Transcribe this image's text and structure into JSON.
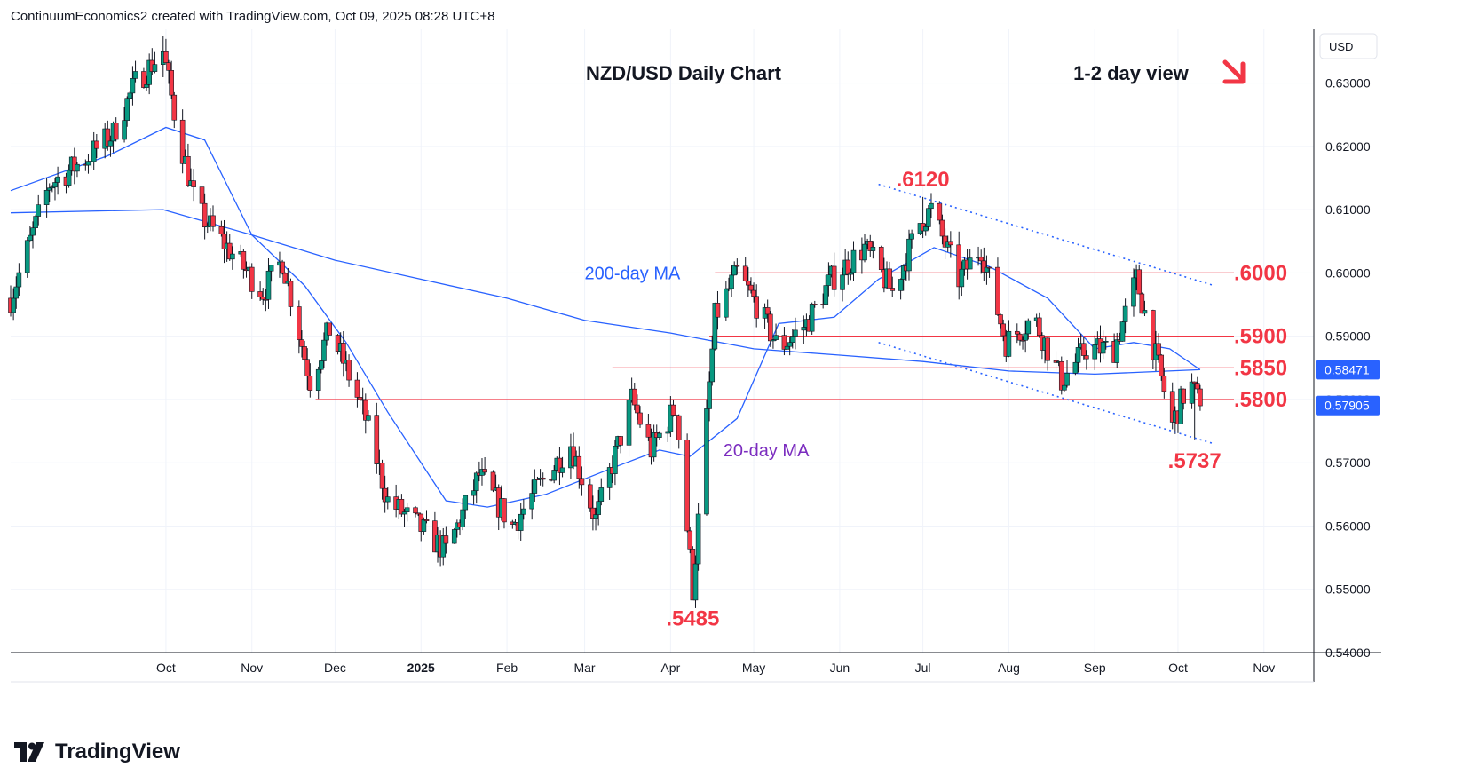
{
  "header": {
    "attribution": "ContinuumEconomics2 created with TradingView.com, Oct 09, 2025 08:28 UTC+8"
  },
  "branding": {
    "name": "TradingView"
  },
  "colors": {
    "bull": "#089981",
    "bear": "#f23645",
    "ma20": "#2962ff",
    "ma200": "#2962ff",
    "level": "#f23645",
    "annotation_red": "#f23645",
    "annotation_purple": "#7b2cbf",
    "channel": "#2962ff",
    "price_badge_ma": "#2962ff",
    "price_badge_last": "#2962ff"
  },
  "chart_data": {
    "type": "candlestick",
    "title": "NZD/USD Daily Chart",
    "subtitle": "1-2 day view",
    "currency_label": "USD",
    "y_range": [
      0.54,
      0.6385
    ],
    "y_ticks": [
      "0.63000",
      "0.62000",
      "0.61000",
      "0.60000",
      "0.59000",
      "0.58000",
      "0.57000",
      "0.56000",
      "0.55000",
      "0.54000"
    ],
    "y_tick_values": [
      0.63,
      0.62,
      0.61,
      0.6,
      0.59,
      0.58,
      0.57,
      0.56,
      0.55,
      0.54
    ],
    "x_labels": [
      {
        "label": "Oct",
        "date": "2024-10-01"
      },
      {
        "label": "Nov",
        "date": "2024-11-01"
      },
      {
        "label": "Dec",
        "date": "2024-12-01"
      },
      {
        "label": "2025",
        "date": "2025-01-01"
      },
      {
        "label": "Feb",
        "date": "2025-02-01"
      },
      {
        "label": "Mar",
        "date": "2025-03-01"
      },
      {
        "label": "Apr",
        "date": "2025-04-01"
      },
      {
        "label": "May",
        "date": "2025-05-01"
      },
      {
        "label": "Jun",
        "date": "2025-06-01"
      },
      {
        "label": "Jul",
        "date": "2025-07-01"
      },
      {
        "label": "Aug",
        "date": "2025-08-01"
      },
      {
        "label": "Sep",
        "date": "2025-09-01"
      },
      {
        "label": "Oct",
        "date": "2025-10-01"
      },
      {
        "label": "Nov",
        "date": "2025-11-01"
      }
    ],
    "x_range": [
      "2024-08-06",
      "2025-11-19"
    ],
    "price_path": [
      {
        "date": "2024-08-06",
        "price": 0.596
      },
      {
        "date": "2024-08-20",
        "price": 0.614
      },
      {
        "date": "2024-09-02",
        "price": 0.618
      },
      {
        "date": "2024-09-12",
        "price": 0.622
      },
      {
        "date": "2024-09-20",
        "price": 0.63
      },
      {
        "date": "2024-09-30",
        "price": 0.635
      },
      {
        "date": "2024-10-05",
        "price": 0.623
      },
      {
        "date": "2024-10-12",
        "price": 0.61
      },
      {
        "date": "2024-10-25",
        "price": 0.603
      },
      {
        "date": "2024-11-05",
        "price": 0.597
      },
      {
        "date": "2024-11-12",
        "price": 0.602
      },
      {
        "date": "2024-11-22",
        "price": 0.583
      },
      {
        "date": "2024-11-29",
        "price": 0.591
      },
      {
        "date": "2024-12-04",
        "price": 0.586
      },
      {
        "date": "2024-12-12",
        "price": 0.577
      },
      {
        "date": "2024-12-20",
        "price": 0.564
      },
      {
        "date": "2024-12-31",
        "price": 0.56
      },
      {
        "date": "2025-01-10",
        "price": 0.556
      },
      {
        "date": "2025-01-22",
        "price": 0.568
      },
      {
        "date": "2025-02-03",
        "price": 0.56
      },
      {
        "date": "2025-02-12",
        "price": 0.566
      },
      {
        "date": "2025-02-24",
        "price": 0.573
      },
      {
        "date": "2025-03-05",
        "price": 0.561
      },
      {
        "date": "2025-03-18",
        "price": 0.58
      },
      {
        "date": "2025-03-25",
        "price": 0.572
      },
      {
        "date": "2025-04-03",
        "price": 0.579
      },
      {
        "date": "2025-04-09",
        "price": 0.55
      },
      {
        "date": "2025-04-17",
        "price": 0.593
      },
      {
        "date": "2025-04-25",
        "price": 0.6
      },
      {
        "date": "2025-05-02",
        "price": 0.595
      },
      {
        "date": "2025-05-10",
        "price": 0.588
      },
      {
        "date": "2025-05-20",
        "price": 0.592
      },
      {
        "date": "2025-05-29",
        "price": 0.599
      },
      {
        "date": "2025-06-10",
        "price": 0.604
      },
      {
        "date": "2025-06-20",
        "price": 0.597
      },
      {
        "date": "2025-06-30",
        "price": 0.608
      },
      {
        "date": "2025-07-04",
        "price": 0.61
      },
      {
        "date": "2025-07-14",
        "price": 0.599
      },
      {
        "date": "2025-07-22",
        "price": 0.604
      },
      {
        "date": "2025-07-31",
        "price": 0.589
      },
      {
        "date": "2025-08-10",
        "price": 0.593
      },
      {
        "date": "2025-08-20",
        "price": 0.583
      },
      {
        "date": "2025-08-29",
        "price": 0.588
      },
      {
        "date": "2025-09-08",
        "price": 0.588
      },
      {
        "date": "2025-09-16",
        "price": 0.599
      },
      {
        "date": "2025-09-24",
        "price": 0.585
      },
      {
        "date": "2025-09-29",
        "price": 0.576
      },
      {
        "date": "2025-10-05",
        "price": 0.583
      },
      {
        "date": "2025-10-09",
        "price": 0.579
      }
    ],
    "series": [
      {
        "name": "20-day MA",
        "values": [
          {
            "date": "2024-08-06",
            "v": 0.613
          },
          {
            "date": "2024-09-10",
            "v": 0.6185
          },
          {
            "date": "2024-10-01",
            "v": 0.623
          },
          {
            "date": "2024-10-15",
            "v": 0.621
          },
          {
            "date": "2024-11-01",
            "v": 0.606
          },
          {
            "date": "2024-11-20",
            "v": 0.598
          },
          {
            "date": "2024-12-05",
            "v": 0.589
          },
          {
            "date": "2024-12-20",
            "v": 0.578
          },
          {
            "date": "2025-01-10",
            "v": 0.564
          },
          {
            "date": "2025-01-25",
            "v": 0.563
          },
          {
            "date": "2025-02-15",
            "v": 0.565
          },
          {
            "date": "2025-03-10",
            "v": 0.569
          },
          {
            "date": "2025-03-28",
            "v": 0.572
          },
          {
            "date": "2025-04-08",
            "v": 0.571
          },
          {
            "date": "2025-04-25",
            "v": 0.577
          },
          {
            "date": "2025-05-10",
            "v": 0.592
          },
          {
            "date": "2025-05-30",
            "v": 0.593
          },
          {
            "date": "2025-06-15",
            "v": 0.599
          },
          {
            "date": "2025-07-05",
            "v": 0.604
          },
          {
            "date": "2025-07-25",
            "v": 0.601
          },
          {
            "date": "2025-08-15",
            "v": 0.596
          },
          {
            "date": "2025-09-01",
            "v": 0.588
          },
          {
            "date": "2025-09-15",
            "v": 0.589
          },
          {
            "date": "2025-09-28",
            "v": 0.588
          },
          {
            "date": "2025-10-09",
            "v": 0.5847
          }
        ]
      },
      {
        "name": "200-day MA",
        "values": [
          {
            "date": "2024-08-06",
            "v": 0.6095
          },
          {
            "date": "2024-09-30",
            "v": 0.61
          },
          {
            "date": "2024-11-01",
            "v": 0.606
          },
          {
            "date": "2024-12-01",
            "v": 0.602
          },
          {
            "date": "2025-01-01",
            "v": 0.599
          },
          {
            "date": "2025-02-01",
            "v": 0.596
          },
          {
            "date": "2025-03-01",
            "v": 0.5925
          },
          {
            "date": "2025-04-01",
            "v": 0.5905
          },
          {
            "date": "2025-05-01",
            "v": 0.588
          },
          {
            "date": "2025-06-01",
            "v": 0.587
          },
          {
            "date": "2025-07-01",
            "v": 0.586
          },
          {
            "date": "2025-08-01",
            "v": 0.5845
          },
          {
            "date": "2025-09-01",
            "v": 0.584
          },
          {
            "date": "2025-10-09",
            "v": 0.5847
          }
        ]
      }
    ],
    "levels": [
      {
        "label": ".6000",
        "price": 0.6,
        "from": "2025-04-17"
      },
      {
        "label": ".5900",
        "price": 0.59,
        "from": "2025-04-15"
      },
      {
        "label": ".5850",
        "price": 0.585,
        "from": "2025-03-11"
      },
      {
        "label": ".5800",
        "price": 0.58,
        "from": "2024-11-24"
      }
    ],
    "channel": [
      {
        "from": {
          "date": "2025-06-15",
          "price": 0.614
        },
        "to": {
          "date": "2025-10-14",
          "price": 0.598
        }
      },
      {
        "from": {
          "date": "2025-06-15",
          "price": 0.589
        },
        "to": {
          "date": "2025-10-14",
          "price": 0.573
        }
      }
    ],
    "annotations": [
      {
        "text": ".6120",
        "date": "2025-07-01",
        "price": 0.612,
        "color": "red"
      },
      {
        "text": ".5485",
        "date": "2025-04-09",
        "price": 0.5485,
        "color": "red"
      },
      {
        "text": ".5737",
        "date": "2025-10-07",
        "price": 0.5737,
        "color": "red"
      },
      {
        "text": "200-day MA",
        "date": "2025-03-01",
        "price": 0.599,
        "color": "blue"
      },
      {
        "text": "20-day MA",
        "date": "2025-04-20",
        "price": 0.571,
        "color": "purple"
      }
    ],
    "price_badges": [
      {
        "label": "0.58471",
        "price": 0.58471
      },
      {
        "label": "0.57905",
        "price": 0.57905
      }
    ],
    "grid": true,
    "legend": "none"
  }
}
